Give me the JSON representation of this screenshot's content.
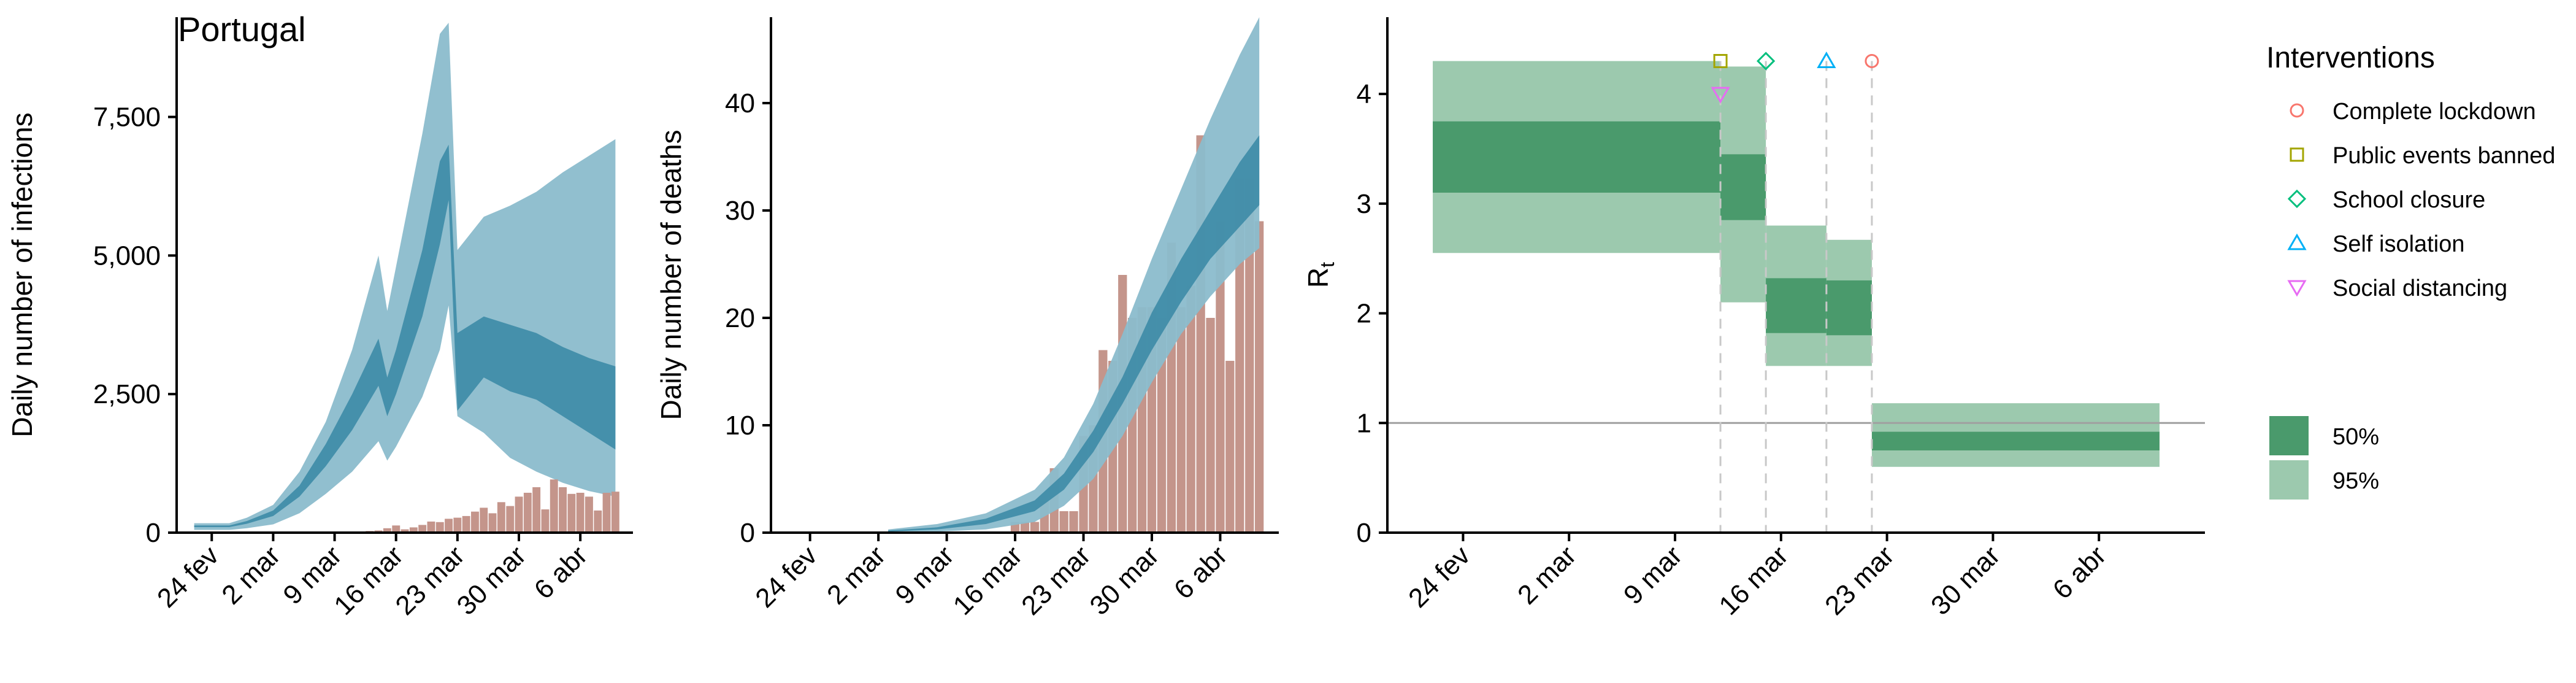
{
  "title": "Portugal",
  "colors": {
    "band_outer": "#8bbccc",
    "band_inner": "#3d8ba6",
    "bars": "#c4958b",
    "rt_outer": "#9cc9ae",
    "rt_inner": "#4a9a6c",
    "reference_line": "#a0a0a0",
    "intervention_line": "#c8c8c8",
    "lockdown": "#f8766d",
    "public_events": "#a3a500",
    "school": "#00bf7d",
    "self_isolation": "#00b0f6",
    "social_distancing": "#e76bf3"
  },
  "x_ticks": [
    "24 fev",
    "2 mar",
    "9 mar",
    "16 mar",
    "23 mar",
    "30 mar",
    "6 abr"
  ],
  "chart_data": [
    {
      "type": "area",
      "ylabel": "Daily number of infections",
      "ylim": [
        0,
        9300
      ],
      "yticks": [
        0,
        2500,
        5000,
        7500
      ],
      "ytick_labels": [
        "0",
        "2,500",
        "5,000",
        "7,500"
      ],
      "x": [
        "2020-02-22",
        "2020-02-26",
        "2020-02-28",
        "2020-03-02",
        "2020-03-05",
        "2020-03-08",
        "2020-03-11",
        "2020-03-14",
        "2020-03-15",
        "2020-03-16",
        "2020-03-19",
        "2020-03-21",
        "2020-03-22",
        "2020-03-23",
        "2020-03-26",
        "2020-03-29",
        "2020-04-01",
        "2020-04-04",
        "2020-04-07",
        "2020-04-10"
      ],
      "outer_low": [
        50,
        50,
        80,
        150,
        350,
        700,
        1100,
        1650,
        1300,
        1550,
        2450,
        3300,
        4100,
        2100,
        1800,
        1350,
        1100,
        900,
        750,
        650
      ],
      "outer_high": [
        170,
        170,
        270,
        500,
        1100,
        2000,
        3300,
        5000,
        4000,
        4800,
        7200,
        9000,
        9200,
        5100,
        5700,
        5900,
        6150,
        6500,
        6800,
        7100
      ],
      "inner_low": [
        100,
        100,
        160,
        300,
        650,
        1200,
        1850,
        2650,
        2100,
        2500,
        3900,
        5200,
        6000,
        2200,
        2800,
        2550,
        2400,
        2100,
        1800,
        1500
      ],
      "inner_high": [
        130,
        130,
        210,
        400,
        850,
        1600,
        2500,
        3500,
        2800,
        3300,
        5100,
        6700,
        7000,
        3600,
        3900,
        3750,
        3600,
        3350,
        3150,
        3000
      ],
      "bars": [
        {
          "date": "2020-03-02",
          "value": 2
        },
        {
          "date": "2020-03-03",
          "value": 2
        },
        {
          "date": "2020-03-04",
          "value": 3
        },
        {
          "date": "2020-03-05",
          "value": 4
        },
        {
          "date": "2020-03-06",
          "value": 8
        },
        {
          "date": "2020-03-07",
          "value": 8
        },
        {
          "date": "2020-03-08",
          "value": 9
        },
        {
          "date": "2020-03-09",
          "value": 9
        },
        {
          "date": "2020-03-10",
          "value": 11
        },
        {
          "date": "2020-03-11",
          "value": 20
        },
        {
          "date": "2020-03-12",
          "value": 18
        },
        {
          "date": "2020-03-13",
          "value": 30
        },
        {
          "date": "2020-03-14",
          "value": 40
        },
        {
          "date": "2020-03-15",
          "value": 80
        },
        {
          "date": "2020-03-16",
          "value": 130
        },
        {
          "date": "2020-03-17",
          "value": 60
        },
        {
          "date": "2020-03-18",
          "value": 95
        },
        {
          "date": "2020-03-19",
          "value": 140
        },
        {
          "date": "2020-03-20",
          "value": 200
        },
        {
          "date": "2020-03-21",
          "value": 190
        },
        {
          "date": "2020-03-22",
          "value": 250
        },
        {
          "date": "2020-03-23",
          "value": 270
        },
        {
          "date": "2020-03-24",
          "value": 300
        },
        {
          "date": "2020-03-25",
          "value": 380
        },
        {
          "date": "2020-03-26",
          "value": 450
        },
        {
          "date": "2020-03-27",
          "value": 350
        },
        {
          "date": "2020-03-28",
          "value": 550
        },
        {
          "date": "2020-03-29",
          "value": 480
        },
        {
          "date": "2020-03-30",
          "value": 650
        },
        {
          "date": "2020-03-31",
          "value": 720
        },
        {
          "date": "2020-04-01",
          "value": 820
        },
        {
          "date": "2020-04-02",
          "value": 420
        },
        {
          "date": "2020-04-03",
          "value": 960
        },
        {
          "date": "2020-04-04",
          "value": 820
        },
        {
          "date": "2020-04-05",
          "value": 700
        },
        {
          "date": "2020-04-06",
          "value": 720
        },
        {
          "date": "2020-04-07",
          "value": 650
        },
        {
          "date": "2020-04-08",
          "value": 400
        },
        {
          "date": "2020-04-09",
          "value": 720
        },
        {
          "date": "2020-04-10",
          "value": 740
        }
      ]
    },
    {
      "type": "area",
      "ylabel": "Daily number of deaths",
      "ylim": [
        0,
        48
      ],
      "yticks": [
        0,
        10,
        20,
        30,
        40
      ],
      "ytick_labels": [
        "0",
        "10",
        "20",
        "30",
        "40"
      ],
      "x": [
        "2020-03-03",
        "2020-03-08",
        "2020-03-13",
        "2020-03-18",
        "2020-03-21",
        "2020-03-24",
        "2020-03-27",
        "2020-03-30",
        "2020-04-02",
        "2020-04-05",
        "2020-04-08",
        "2020-04-10"
      ],
      "outer_low": [
        0,
        0.1,
        0.3,
        1.0,
        2.5,
        5.0,
        9.0,
        14.0,
        18.5,
        22.0,
        25.0,
        26.5
      ],
      "outer_high": [
        0.3,
        0.8,
        1.8,
        4.0,
        7.0,
        12.0,
        18.5,
        25.5,
        32.0,
        38.5,
        44.5,
        48.0
      ],
      "inner_low": [
        0.1,
        0.3,
        0.8,
        2.0,
        4.0,
        7.5,
        12.0,
        17.0,
        21.5,
        25.5,
        28.5,
        30.5
      ],
      "inner_high": [
        0.2,
        0.5,
        1.3,
        3.0,
        5.5,
        9.5,
        14.5,
        20.5,
        25.5,
        30.0,
        34.5,
        37.0
      ],
      "bars": [
        {
          "date": "2020-03-16",
          "value": 1
        },
        {
          "date": "2020-03-17",
          "value": 1
        },
        {
          "date": "2020-03-18",
          "value": 1
        },
        {
          "date": "2020-03-19",
          "value": 3
        },
        {
          "date": "2020-03-20",
          "value": 6
        },
        {
          "date": "2020-03-21",
          "value": 2
        },
        {
          "date": "2020-03-22",
          "value": 2
        },
        {
          "date": "2020-03-23",
          "value": 9
        },
        {
          "date": "2020-03-24",
          "value": 10
        },
        {
          "date": "2020-03-25",
          "value": 17
        },
        {
          "date": "2020-03-26",
          "value": 16
        },
        {
          "date": "2020-03-27",
          "value": 24
        },
        {
          "date": "2020-03-28",
          "value": 20
        },
        {
          "date": "2020-03-29",
          "value": 21
        },
        {
          "date": "2020-03-30",
          "value": 21
        },
        {
          "date": "2020-03-31",
          "value": 20
        },
        {
          "date": "2020-04-01",
          "value": 27
        },
        {
          "date": "2020-04-02",
          "value": 21
        },
        {
          "date": "2020-04-03",
          "value": 23
        },
        {
          "date": "2020-04-04",
          "value": 37
        },
        {
          "date": "2020-04-05",
          "value": 20
        },
        {
          "date": "2020-04-06",
          "value": 29
        },
        {
          "date": "2020-04-07",
          "value": 16
        },
        {
          "date": "2020-04-08",
          "value": 33
        },
        {
          "date": "2020-04-09",
          "value": 33
        },
        {
          "date": "2020-04-10",
          "value": 29
        }
      ]
    },
    {
      "type": "area",
      "ylabel": "R",
      "ylabel_sub": "t",
      "ylim": [
        0,
        4.7
      ],
      "yticks": [
        0,
        1,
        2,
        3,
        4
      ],
      "ytick_labels": [
        "0",
        "1",
        "2",
        "3",
        "4"
      ],
      "reference_line": 1,
      "segments": [
        {
          "start": "2020-02-22",
          "end": "2020-03-12",
          "lo95": 2.55,
          "hi95": 4.3,
          "lo50": 3.1,
          "hi50": 3.75
        },
        {
          "start": "2020-03-12",
          "end": "2020-03-15",
          "lo95": 2.1,
          "hi95": 4.25,
          "lo50": 2.85,
          "hi50": 3.45
        },
        {
          "start": "2020-03-15",
          "end": "2020-03-19",
          "lo95": 1.52,
          "hi95": 2.8,
          "lo50": 1.82,
          "hi50": 2.32
        },
        {
          "start": "2020-03-19",
          "end": "2020-03-22",
          "lo95": 1.52,
          "hi95": 2.67,
          "lo50": 1.8,
          "hi50": 2.3
        },
        {
          "start": "2020-03-22",
          "end": "2020-04-10",
          "lo95": 0.6,
          "hi95": 1.18,
          "lo50": 0.75,
          "hi50": 0.92
        }
      ],
      "interventions": [
        {
          "name": "Complete lockdown",
          "date": "2020-03-22",
          "y": 4.3,
          "shape": "circle",
          "color_key": "lockdown"
        },
        {
          "name": "Public events banned",
          "date": "2020-03-12",
          "y": 4.3,
          "shape": "square",
          "color_key": "public_events"
        },
        {
          "name": "School closure",
          "date": "2020-03-15",
          "y": 4.3,
          "shape": "diamond",
          "color_key": "school"
        },
        {
          "name": "Self isolation",
          "date": "2020-03-19",
          "y": 4.3,
          "shape": "triangle",
          "color_key": "self_isolation"
        },
        {
          "name": "Social distancing",
          "date": "2020-03-12",
          "y": 4.0,
          "shape": "triangle-down",
          "color_key": "social_distancing"
        }
      ]
    }
  ],
  "legend": {
    "title": "Interventions",
    "items": [
      {
        "label": "Complete lockdown",
        "shape": "circle",
        "color_key": "lockdown"
      },
      {
        "label": "Public events banned",
        "shape": "square",
        "color_key": "public_events"
      },
      {
        "label": "School closure",
        "shape": "diamond",
        "color_key": "school"
      },
      {
        "label": "Self isolation",
        "shape": "triangle",
        "color_key": "self_isolation"
      },
      {
        "label": "Social distancing",
        "shape": "triangle-down",
        "color_key": "social_distancing"
      }
    ],
    "ci": [
      {
        "label": "50%",
        "color_key": "rt_inner"
      },
      {
        "label": "95%",
        "color_key": "rt_outer"
      }
    ]
  }
}
